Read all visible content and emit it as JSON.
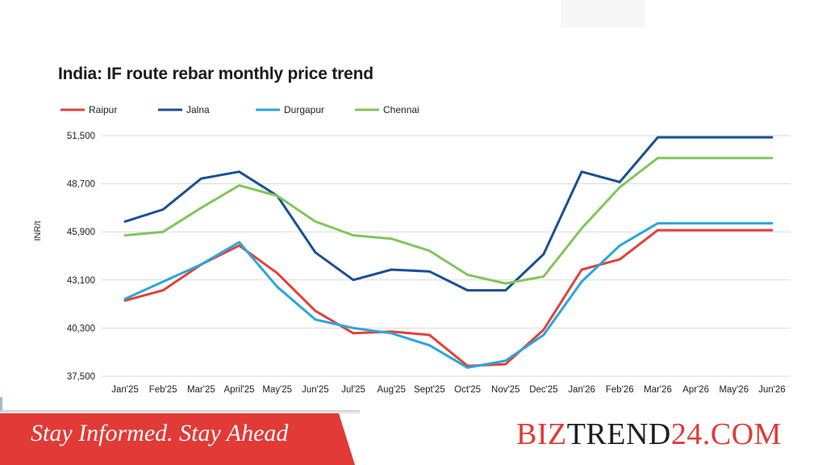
{
  "chart_data": {
    "type": "line",
    "title": "India: IF route rebar monthly price trend",
    "ylabel": "INR/t",
    "xlabel": "",
    "ylim": [
      37500,
      51500
    ],
    "yticks": [
      "51,500",
      "48,700",
      "45,900",
      "43,100",
      "40,300",
      "37,500"
    ],
    "ytick_values": [
      51500,
      48700,
      45900,
      43100,
      40300,
      37500
    ],
    "categories": [
      "Jan'25",
      "Feb'25",
      "Mar'25",
      "April'25",
      "May'25",
      "Jun'25",
      "Jul'25",
      "Aug'25",
      "Sept'25",
      "Oct'25",
      "Nov'25",
      "Dec'25",
      "Jan'26",
      "Feb'26",
      "Mar'26",
      "Apr'26",
      "May'26",
      "Jun'26"
    ],
    "grid": "horizontal",
    "legend_position": "top-left",
    "series": [
      {
        "name": "Raipur",
        "color": "#e4403a",
        "values": [
          41900,
          42500,
          44000,
          45100,
          43500,
          41300,
          40000,
          40100,
          39900,
          38100,
          38200,
          40200,
          43700,
          44300,
          46000,
          46000,
          46000,
          46000
        ]
      },
      {
        "name": "Jalna",
        "color": "#1b4f93",
        "values": [
          46500,
          47200,
          49000,
          49400,
          48000,
          44700,
          43100,
          43700,
          43600,
          42500,
          42500,
          44600,
          49400,
          48800,
          51400,
          51400,
          51400,
          51400
        ]
      },
      {
        "name": "Durgapur",
        "color": "#2aa6dd",
        "values": [
          42000,
          43000,
          44000,
          45300,
          42700,
          40800,
          40300,
          40000,
          39300,
          38000,
          38400,
          39900,
          43000,
          45100,
          46400,
          46400,
          46400,
          46400
        ]
      },
      {
        "name": "Chennai",
        "color": "#82c55b",
        "values": [
          45700,
          45900,
          47300,
          48600,
          48000,
          46500,
          45700,
          45500,
          44800,
          43400,
          42900,
          43300,
          46100,
          48500,
          50200,
          50200,
          50200,
          50200
        ]
      }
    ]
  },
  "footer": {
    "tagline": "Stay Informed. Stay Ahead",
    "brand_part1": "BIZ",
    "brand_part2": "TREND",
    "brand_part3": "24.COM"
  },
  "colors": {
    "banner_red": "#e23a36",
    "grid": "#d9d9d9"
  }
}
